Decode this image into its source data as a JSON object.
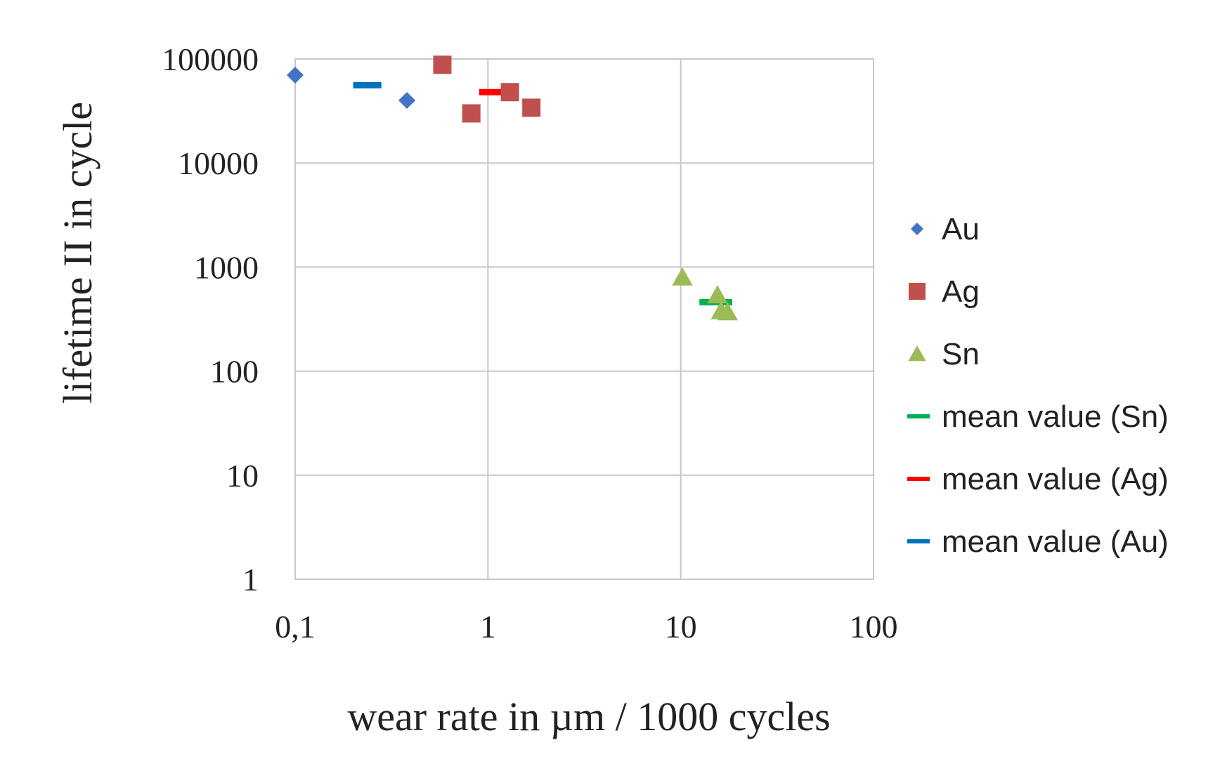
{
  "chart_data": {
    "type": "scatter",
    "title": "",
    "xlabel": "wear rate in µm / 1000 cycles",
    "ylabel": "lifetime II in cycle",
    "x_scale": "log",
    "y_scale": "log",
    "xlim": [
      0.1,
      100
    ],
    "ylim": [
      1,
      100000
    ],
    "x_ticks": [
      0.1,
      1,
      10,
      100
    ],
    "x_tick_labels": [
      "0,1",
      "1",
      "10",
      "100"
    ],
    "y_ticks": [
      1,
      10,
      100,
      1000,
      10000,
      100000
    ],
    "y_tick_labels": [
      "1",
      "10",
      "100",
      "1000",
      "10000",
      "100000"
    ],
    "grid": true,
    "legend_position": "right",
    "series": [
      {
        "name": "Au",
        "kind": "points",
        "marker": "diamond",
        "color": "#4472c4",
        "points": [
          {
            "x": 0.1,
            "y": 70000
          },
          {
            "x": 0.38,
            "y": 40000
          }
        ]
      },
      {
        "name": "Ag",
        "kind": "points",
        "marker": "square",
        "color": "#c0504d",
        "points": [
          {
            "x": 0.58,
            "y": 88000
          },
          {
            "x": 0.82,
            "y": 30000
          },
          {
            "x": 1.3,
            "y": 48000
          },
          {
            "x": 1.68,
            "y": 34000
          }
        ]
      },
      {
        "name": "Sn",
        "kind": "points",
        "marker": "triangle",
        "color": "#9bbb59",
        "points": [
          {
            "x": 10.2,
            "y": 800
          },
          {
            "x": 15.5,
            "y": 540
          },
          {
            "x": 16.2,
            "y": 380
          },
          {
            "x": 17.5,
            "y": 370
          }
        ]
      },
      {
        "name": "mean value (Sn)",
        "kind": "mean",
        "color": "#00b050",
        "x_range": [
          12.5,
          18.5
        ],
        "y": 460
      },
      {
        "name": "mean value (Ag)",
        "kind": "mean",
        "color": "#ff0000",
        "x_range": [
          0.9,
          1.22
        ],
        "y": 48000
      },
      {
        "name": "mean value (Au)",
        "kind": "mean",
        "color": "#0070c0",
        "x_range": [
          0.2,
          0.28
        ],
        "y": 56000
      }
    ]
  }
}
